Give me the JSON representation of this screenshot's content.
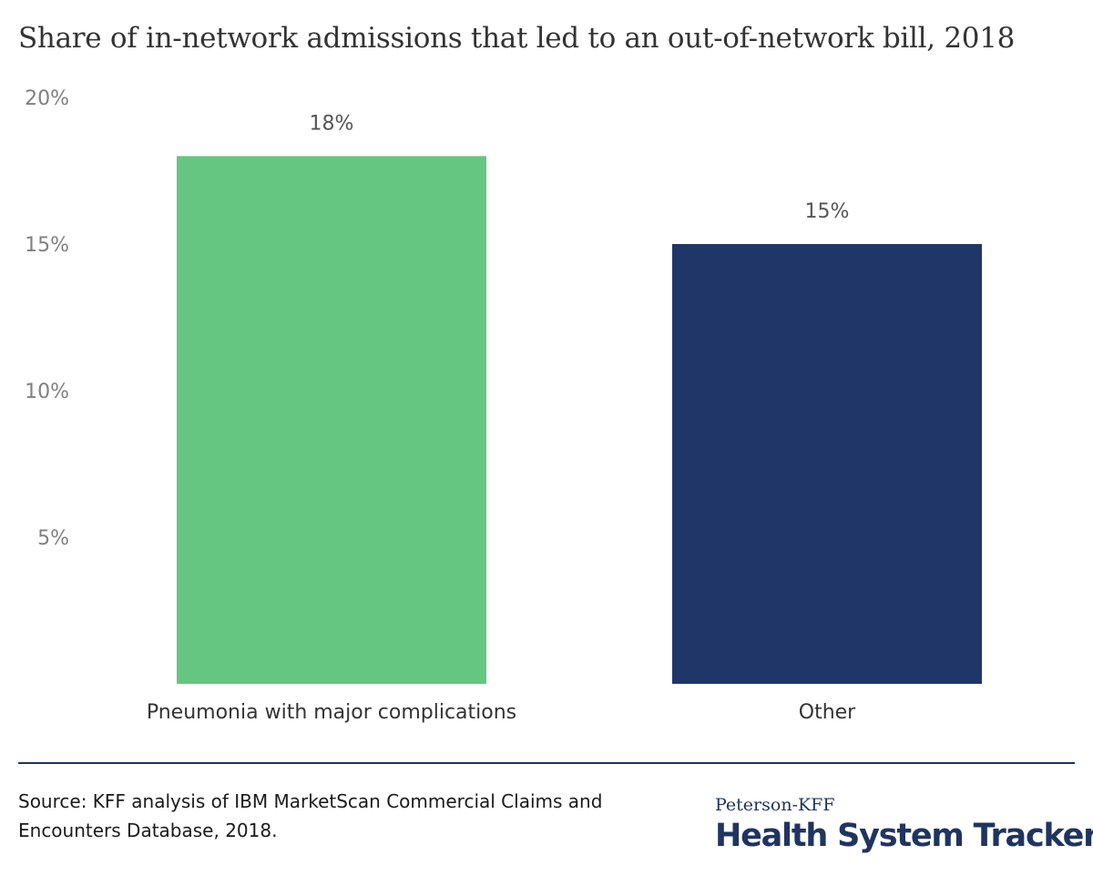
{
  "chart_data": {
    "type": "bar",
    "title": "Share of in-network admissions that led to an out-of-network bill, 2018",
    "categories": [
      "Pneumonia with major complications",
      "Other"
    ],
    "values": [
      18,
      15
    ],
    "data_labels": [
      "18%",
      "15%"
    ],
    "colors": [
      "#64c680",
      "#213668"
    ],
    "ylim": [
      0,
      20
    ],
    "yticks": [
      5,
      10,
      15,
      20
    ],
    "ytick_labels": [
      "5%",
      "10%",
      "15%",
      "20%"
    ],
    "xlabel": "",
    "ylabel": "",
    "grid": false,
    "legend": "none"
  },
  "footer": {
    "source": "Source: KFF analysis of IBM MarketScan Commercial Claims and Encounters Database, 2018.",
    "logo_top": "Peterson-KFF",
    "logo_main": "Health System Tracker"
  }
}
